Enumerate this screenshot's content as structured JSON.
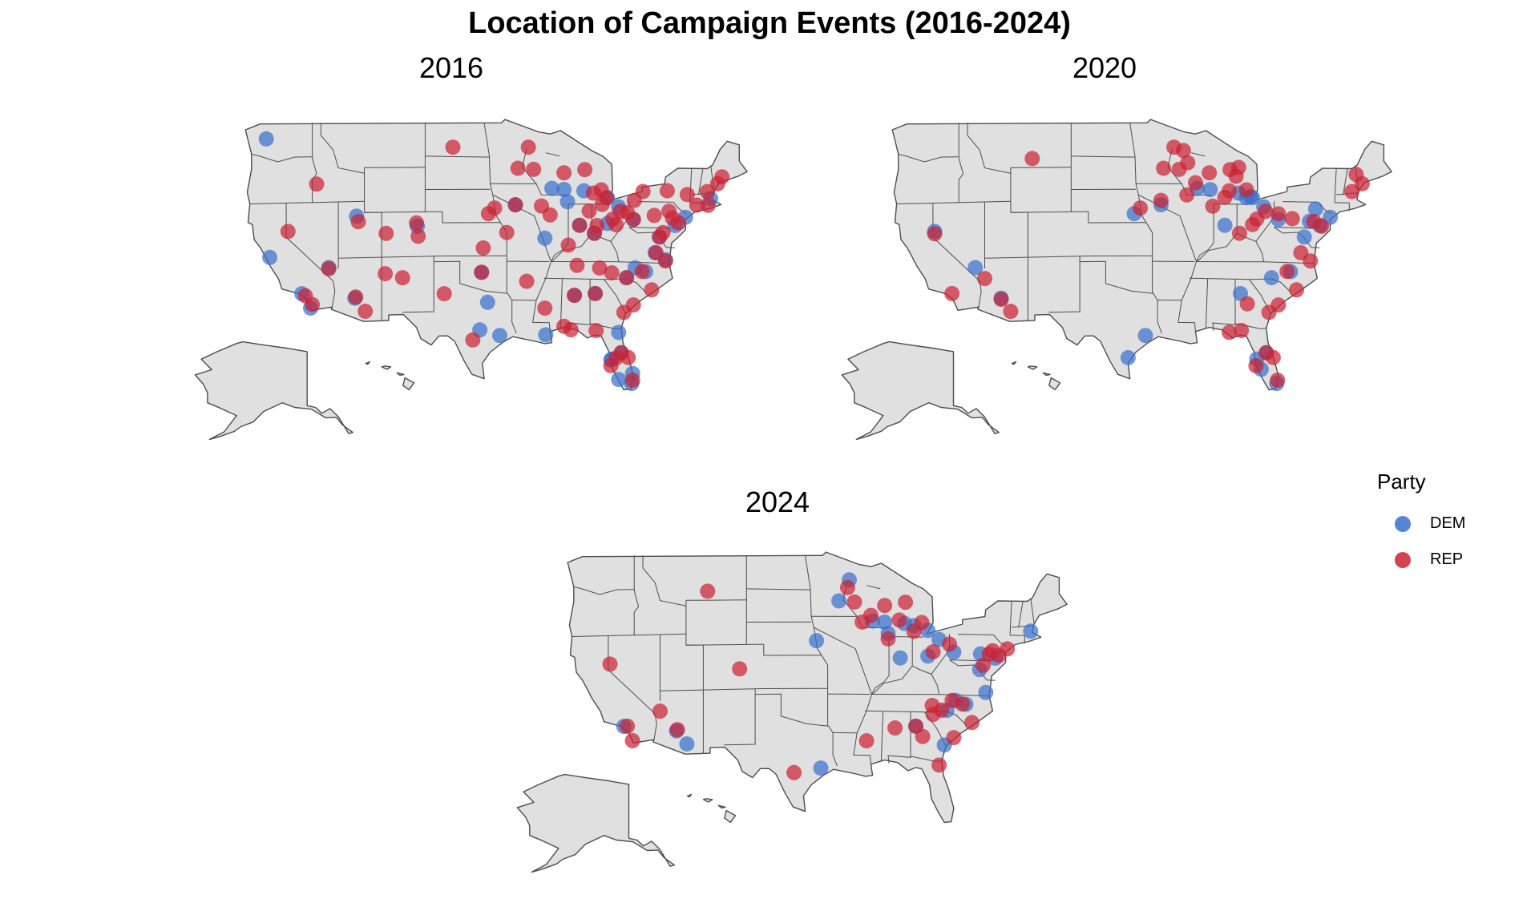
{
  "title": "Location of Campaign Events (2016-2024)",
  "panels": [
    {
      "label": "2016"
    },
    {
      "label": "2020"
    },
    {
      "label": "2024"
    }
  ],
  "legend": {
    "title": "Party",
    "items": [
      {
        "label": "DEM",
        "color": "#3a70cc"
      },
      {
        "label": "REP",
        "color": "#cb2233"
      }
    ]
  },
  "colors": {
    "land": "#e0e0e0",
    "border": "#4d4d4d",
    "DEM": "#3a70cc",
    "REP": "#cb2233"
  },
  "events": {
    "2016": {
      "DEM": [
        [
          -122.3,
          47.6
        ],
        [
          -121.9,
          37.3
        ],
        [
          -118.2,
          34.0
        ],
        [
          -117.2,
          32.7
        ],
        [
          -115.1,
          36.2
        ],
        [
          -112.1,
          33.4
        ],
        [
          -111.9,
          40.7
        ],
        [
          -104.9,
          39.7
        ],
        [
          -97.5,
          35.5
        ],
        [
          -96.8,
          32.8
        ],
        [
          -95.4,
          29.8
        ],
        [
          -97.7,
          30.3
        ],
        [
          -93.6,
          41.6
        ],
        [
          -90.2,
          38.6
        ],
        [
          -86.8,
          33.5
        ],
        [
          -90.1,
          29.9
        ],
        [
          -84.4,
          33.7
        ],
        [
          -81.7,
          30.3
        ],
        [
          -81.4,
          28.5
        ],
        [
          -80.2,
          25.8
        ],
        [
          -80.1,
          26.7
        ],
        [
          -82.5,
          27.9
        ],
        [
          -80.8,
          35.2
        ],
        [
          -78.6,
          35.8
        ],
        [
          -77.0,
          38.9
        ],
        [
          -75.2,
          39.95
        ],
        [
          -74.0,
          40.7
        ],
        [
          -71.1,
          42.4
        ],
        [
          -83.0,
          40.0
        ],
        [
          -84.5,
          39.1
        ],
        [
          -81.7,
          41.5
        ],
        [
          -83.0,
          42.3
        ],
        [
          -87.6,
          41.9
        ],
        [
          -89.4,
          43.1
        ],
        [
          -88.0,
          43.0
        ],
        [
          -86.2,
          39.8
        ],
        [
          -85.7,
          42.9
        ],
        [
          -80.0,
          40.4
        ],
        [
          -76.3,
          36.9
        ],
        [
          -79.8,
          36.1
        ],
        [
          -82.6,
          27.8
        ],
        [
          -81.7,
          26.1
        ],
        [
          -77.5,
          37.5
        ]
      ],
      "REP": [
        [
          -116.5,
          43.6
        ],
        [
          -119.8,
          39.5
        ],
        [
          -117.8,
          33.8
        ],
        [
          -117.0,
          33.0
        ],
        [
          -112.0,
          33.5
        ],
        [
          -110.9,
          32.2
        ],
        [
          -108.6,
          35.5
        ],
        [
          -106.6,
          35.1
        ],
        [
          -104.8,
          38.8
        ],
        [
          -105.0,
          40.0
        ],
        [
          -108.5,
          39.1
        ],
        [
          -111.7,
          40.2
        ],
        [
          -115.1,
          36.1
        ],
        [
          -100.8,
          46.8
        ],
        [
          -96.7,
          40.8
        ],
        [
          -96.0,
          41.3
        ],
        [
          -97.3,
          37.7
        ],
        [
          -98.5,
          29.4
        ],
        [
          -101.8,
          33.6
        ],
        [
          -97.5,
          35.5
        ],
        [
          -94.6,
          39.1
        ],
        [
          -93.3,
          44.9
        ],
        [
          -92.1,
          46.8
        ],
        [
          -91.5,
          44.8
        ],
        [
          -88.0,
          44.5
        ],
        [
          -89.6,
          40.7
        ],
        [
          -90.6,
          41.5
        ],
        [
          -93.6,
          41.6
        ],
        [
          -92.3,
          34.7
        ],
        [
          -90.2,
          32.3
        ],
        [
          -88.0,
          30.7
        ],
        [
          -86.8,
          33.5
        ],
        [
          -84.5,
          39.1
        ],
        [
          -84.4,
          33.7
        ],
        [
          -83.1,
          42.3
        ],
        [
          -84.6,
          42.7
        ],
        [
          -85.6,
          44.8
        ],
        [
          -83.7,
          43.0
        ],
        [
          -86.2,
          39.8
        ],
        [
          -85.1,
          41.1
        ],
        [
          -87.5,
          38.0
        ],
        [
          -82.4,
          40.4
        ],
        [
          -81.5,
          41.1
        ],
        [
          -80.0,
          40.4
        ],
        [
          -77.0,
          38.9
        ],
        [
          -79.0,
          35.8
        ],
        [
          -77.9,
          34.2
        ],
        [
          -80.8,
          35.2
        ],
        [
          -82.5,
          35.6
        ],
        [
          -80.0,
          32.8
        ],
        [
          -81.1,
          32.1
        ],
        [
          -82.0,
          28.0
        ],
        [
          -81.4,
          28.5
        ],
        [
          -80.6,
          28.1
        ],
        [
          -82.6,
          27.3
        ],
        [
          -80.1,
          26.1
        ],
        [
          -84.3,
          30.4
        ],
        [
          -87.2,
          30.4
        ],
        [
          -86.5,
          36.2
        ],
        [
          -83.9,
          36.0
        ],
        [
          -77.4,
          37.5
        ],
        [
          -76.3,
          36.8
        ],
        [
          -76.6,
          39.3
        ],
        [
          -75.5,
          40.6
        ],
        [
          -74.8,
          40.2
        ],
        [
          -73.8,
          42.7
        ],
        [
          -76.1,
          43.0
        ],
        [
          -78.9,
          42.9
        ],
        [
          -71.5,
          43.0
        ],
        [
          -70.3,
          43.7
        ],
        [
          -69.8,
          44.3
        ],
        [
          -72.7,
          41.8
        ],
        [
          -71.4,
          41.8
        ],
        [
          -82.0,
          39.9
        ],
        [
          -80.7,
          41.0
        ],
        [
          -79.9,
          42.1
        ],
        [
          -75.9,
          41.2
        ],
        [
          -77.6,
          40.8
        ],
        [
          -84.2,
          39.8
        ],
        [
          -83.6,
          41.7
        ]
      ]
    },
    "2020": {
      "DEM": [
        [
          -119.8,
          39.5
        ],
        [
          -115.1,
          36.2
        ],
        [
          -112.1,
          33.4
        ],
        [
          -97.4,
          27.8
        ],
        [
          -95.4,
          29.8
        ],
        [
          -87.9,
          43.0
        ],
        [
          -89.4,
          43.1
        ],
        [
          -83.0,
          42.3
        ],
        [
          -84.6,
          42.7
        ],
        [
          -83.7,
          42.3
        ],
        [
          -81.7,
          41.5
        ],
        [
          -80.0,
          40.4
        ],
        [
          -75.2,
          39.95
        ],
        [
          -74.0,
          40.7
        ],
        [
          -77.0,
          38.9
        ],
        [
          -80.8,
          35.2
        ],
        [
          -78.6,
          35.8
        ],
        [
          -84.4,
          33.7
        ],
        [
          -81.4,
          28.5
        ],
        [
          -80.2,
          25.8
        ],
        [
          -82.5,
          27.9
        ],
        [
          -86.2,
          39.8
        ],
        [
          -75.7,
          41.4
        ],
        [
          -76.4,
          40.3
        ],
        [
          -96.7,
          40.8
        ],
        [
          -93.6,
          41.6
        ],
        [
          -83.2,
          42.4
        ],
        [
          -82.0,
          27.0
        ]
      ],
      "REP": [
        [
          -108.5,
          45.8
        ],
        [
          -119.8,
          39.3
        ],
        [
          -117.8,
          34.0
        ],
        [
          -112.1,
          33.3
        ],
        [
          -111.0,
          32.2
        ],
        [
          -114.0,
          35.2
        ],
        [
          -93.3,
          44.9
        ],
        [
          -92.1,
          46.8
        ],
        [
          -91.5,
          44.8
        ],
        [
          -88.0,
          44.5
        ],
        [
          -89.6,
          43.6
        ],
        [
          -90.6,
          42.5
        ],
        [
          -93.6,
          42.0
        ],
        [
          -96.0,
          41.3
        ],
        [
          -85.6,
          44.8
        ],
        [
          -84.6,
          45.0
        ],
        [
          -83.7,
          43.0
        ],
        [
          -86.2,
          42.3
        ],
        [
          -82.5,
          40.4
        ],
        [
          -81.5,
          41.1
        ],
        [
          -80.0,
          40.9
        ],
        [
          -78.4,
          40.5
        ],
        [
          -75.9,
          40.3
        ],
        [
          -75.0,
          39.9
        ],
        [
          -77.9,
          34.2
        ],
        [
          -79.0,
          35.8
        ],
        [
          -80.0,
          32.8
        ],
        [
          -83.6,
          32.8
        ],
        [
          -81.1,
          32.1
        ],
        [
          -85.7,
          30.2
        ],
        [
          -81.4,
          28.5
        ],
        [
          -80.6,
          28.1
        ],
        [
          -82.6,
          27.3
        ],
        [
          -80.1,
          26.1
        ],
        [
          -84.3,
          30.4
        ],
        [
          -71.5,
          43.0
        ],
        [
          -70.3,
          43.7
        ],
        [
          -71.0,
          44.5
        ],
        [
          -83.0,
          39.9
        ],
        [
          -84.5,
          39.1
        ],
        [
          -87.6,
          41.5
        ],
        [
          -91.0,
          46.5
        ],
        [
          -76.3,
          36.8
        ],
        [
          -77.4,
          37.5
        ],
        [
          -85.7,
          42.9
        ],
        [
          -84.9,
          44.2
        ],
        [
          -90.5,
          45.4
        ]
      ]
    },
    "2024": {
      "DEM": [
        [
          -118.2,
          34.0
        ],
        [
          -112.1,
          33.4
        ],
        [
          -110.9,
          32.2
        ],
        [
          -95.4,
          29.8
        ],
        [
          -95.9,
          41.3
        ],
        [
          -92.1,
          46.8
        ],
        [
          -93.3,
          44.9
        ],
        [
          -89.4,
          43.1
        ],
        [
          -88.0,
          43.0
        ],
        [
          -87.6,
          42.0
        ],
        [
          -86.2,
          39.8
        ],
        [
          -85.7,
          42.9
        ],
        [
          -84.6,
          42.7
        ],
        [
          -83.0,
          42.3
        ],
        [
          -81.7,
          41.5
        ],
        [
          -80.0,
          40.4
        ],
        [
          -75.2,
          39.95
        ],
        [
          -76.9,
          40.3
        ],
        [
          -77.0,
          38.9
        ],
        [
          -79.8,
          36.1
        ],
        [
          -78.6,
          35.8
        ],
        [
          -80.8,
          35.2
        ],
        [
          -84.4,
          33.7
        ],
        [
          -81.1,
          32.1
        ],
        [
          -71.1,
          42.4
        ],
        [
          -83.0,
          40.0
        ],
        [
          -76.3,
          36.9
        ]
      ],
      "REP": [
        [
          -108.5,
          45.8
        ],
        [
          -119.8,
          39.5
        ],
        [
          -117.8,
          34.0
        ],
        [
          -117.2,
          32.7
        ],
        [
          -114.0,
          35.2
        ],
        [
          -112.0,
          33.5
        ],
        [
          -104.8,
          38.8
        ],
        [
          -98.5,
          29.4
        ],
        [
          -90.1,
          32.3
        ],
        [
          -86.8,
          33.5
        ],
        [
          -84.4,
          33.7
        ],
        [
          -82.4,
          34.8
        ],
        [
          -80.0,
          32.8
        ],
        [
          -81.7,
          30.3
        ],
        [
          -83.6,
          32.8
        ],
        [
          -82.5,
          35.6
        ],
        [
          -80.2,
          36.1
        ],
        [
          -91.5,
          44.8
        ],
        [
          -90.6,
          43.0
        ],
        [
          -89.6,
          43.6
        ],
        [
          -88.0,
          44.5
        ],
        [
          -86.3,
          43.2
        ],
        [
          -85.6,
          44.8
        ],
        [
          -84.6,
          42.2
        ],
        [
          -83.7,
          43.0
        ],
        [
          -82.4,
          40.4
        ],
        [
          -80.5,
          41.1
        ],
        [
          -75.9,
          40.3
        ],
        [
          -75.5,
          40.6
        ],
        [
          -74.8,
          40.2
        ],
        [
          -76.6,
          39.3
        ],
        [
          -73.8,
          40.8
        ],
        [
          -79.0,
          35.8
        ],
        [
          -81.4,
          35.2
        ],
        [
          -77.9,
          34.2
        ],
        [
          -87.6,
          41.5
        ],
        [
          -92.3,
          46.1
        ]
      ]
    }
  }
}
